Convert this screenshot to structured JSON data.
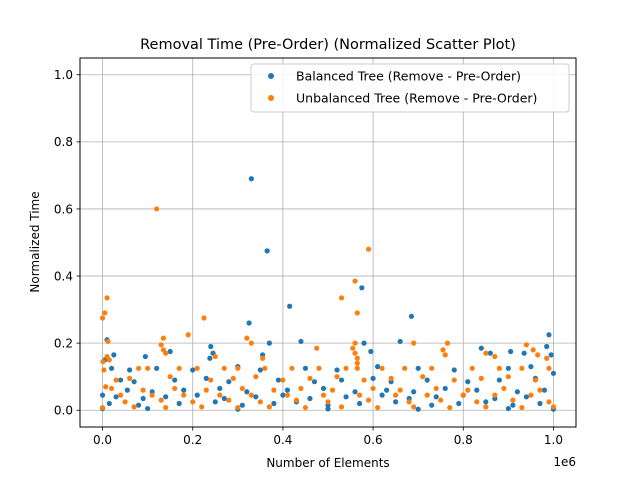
{
  "chart_data": {
    "type": "scatter",
    "title": "Removal Time (Pre-Order) (Normalized Scatter Plot)",
    "xlabel": "Number of Elements",
    "ylabel": "Normalized Time",
    "x_offset_label": "1e6",
    "xlim": [
      -50000,
      1050000
    ],
    "ylim": [
      -0.05,
      1.05
    ],
    "x_tick_values": [
      0,
      200000,
      400000,
      600000,
      800000,
      1000000
    ],
    "x_tick_labels": [
      "0.0",
      "0.2",
      "0.4",
      "0.6",
      "0.8",
      "1.0"
    ],
    "y_tick_values": [
      0,
      0.2,
      0.4,
      0.6,
      0.8,
      1.0
    ],
    "y_tick_labels": [
      "0.0",
      "0.2",
      "0.4",
      "0.6",
      "0.8",
      "1.0"
    ],
    "grid": true,
    "legend_position": "upper right",
    "series": [
      {
        "name": "Balanced Tree (Remove - Pre-Order)",
        "color": "#1f77b4",
        "points": [
          [
            330000,
            0.69
          ],
          [
            365000,
            0.475
          ],
          [
            415000,
            0.31
          ],
          [
            575000,
            0.365
          ],
          [
            685000,
            0.28
          ],
          [
            325000,
            0.26
          ],
          [
            990000,
            0.225
          ],
          [
            370000,
            0.2
          ],
          [
            440000,
            0.205
          ],
          [
            580000,
            0.2
          ],
          [
            660000,
            0.205
          ],
          [
            240000,
            0.19
          ],
          [
            150000,
            0.175
          ],
          [
            25000,
            0.165
          ],
          [
            95000,
            0.16
          ],
          [
            10000,
            0.21
          ],
          [
            5000,
            0.15
          ],
          [
            985000,
            0.19
          ],
          [
            995000,
            0.165
          ],
          [
            840000,
            0.185
          ],
          [
            860000,
            0.17
          ],
          [
            120000,
            0.125
          ],
          [
            200000,
            0.12
          ],
          [
            300000,
            0.13
          ],
          [
            350000,
            0.12
          ],
          [
            450000,
            0.125
          ],
          [
            520000,
            0.12
          ],
          [
            610000,
            0.13
          ],
          [
            700000,
            0.125
          ],
          [
            780000,
            0.12
          ],
          [
            900000,
            0.125
          ],
          [
            950000,
            0.13
          ],
          [
            40000,
            0.09
          ],
          [
            70000,
            0.085
          ],
          [
            160000,
            0.09
          ],
          [
            230000,
            0.095
          ],
          [
            280000,
            0.085
          ],
          [
            390000,
            0.09
          ],
          [
            470000,
            0.085
          ],
          [
            530000,
            0.09
          ],
          [
            600000,
            0.095
          ],
          [
            640000,
            0.085
          ],
          [
            720000,
            0.09
          ],
          [
            810000,
            0.085
          ],
          [
            880000,
            0.09
          ],
          [
            960000,
            0.095
          ],
          [
            1000000,
            0.11
          ],
          [
            55000,
            0.06
          ],
          [
            110000,
            0.055
          ],
          [
            180000,
            0.06
          ],
          [
            260000,
            0.065
          ],
          [
            320000,
            0.055
          ],
          [
            410000,
            0.06
          ],
          [
            490000,
            0.065
          ],
          [
            560000,
            0.055
          ],
          [
            630000,
            0.06
          ],
          [
            690000,
            0.055
          ],
          [
            760000,
            0.065
          ],
          [
            830000,
            0.06
          ],
          [
            920000,
            0.055
          ],
          [
            980000,
            0.06
          ],
          [
            30000,
            0.04
          ],
          [
            90000,
            0.035
          ],
          [
            140000,
            0.04
          ],
          [
            210000,
            0.045
          ],
          [
            270000,
            0.035
          ],
          [
            340000,
            0.04
          ],
          [
            400000,
            0.045
          ],
          [
            460000,
            0.035
          ],
          [
            540000,
            0.04
          ],
          [
            620000,
            0.045
          ],
          [
            680000,
            0.035
          ],
          [
            740000,
            0.04
          ],
          [
            800000,
            0.045
          ],
          [
            870000,
            0.035
          ],
          [
            940000,
            0.04
          ],
          [
            15000,
            0.02
          ],
          [
            80000,
            0.015
          ],
          [
            170000,
            0.02
          ],
          [
            250000,
            0.025
          ],
          [
            310000,
            0.015
          ],
          [
            380000,
            0.02
          ],
          [
            430000,
            0.025
          ],
          [
            500000,
            0.015
          ],
          [
            570000,
            0.02
          ],
          [
            650000,
            0.025
          ],
          [
            730000,
            0.015
          ],
          [
            790000,
            0.02
          ],
          [
            850000,
            0.025
          ],
          [
            910000,
            0.015
          ],
          [
            970000,
            0.02
          ],
          [
            0,
            0.045
          ],
          [
            0,
            0.005
          ],
          [
            100000,
            0.005
          ],
          [
            300000,
            0.003
          ],
          [
            500000,
            0.004
          ],
          [
            700000,
            0.003
          ],
          [
            900000,
            0.005
          ],
          [
            1000000,
            0.003
          ],
          [
            20000,
            0.125
          ],
          [
            60000,
            0.12
          ],
          [
            245000,
            0.17
          ],
          [
            238000,
            0.155
          ],
          [
            355000,
            0.165
          ],
          [
            595000,
            0.175
          ],
          [
            905000,
            0.175
          ],
          [
            935000,
            0.17
          ]
        ]
      },
      {
        "name": "Unbalanced Tree (Remove - Pre-Order)",
        "color": "#ff7f0e",
        "points": [
          [
            120000,
            0.6
          ],
          [
            590000,
            0.48
          ],
          [
            560000,
            0.385
          ],
          [
            530000,
            0.335
          ],
          [
            10000,
            0.335
          ],
          [
            5000,
            0.29
          ],
          [
            0,
            0.275
          ],
          [
            225000,
            0.275
          ],
          [
            565000,
            0.29
          ],
          [
            190000,
            0.225
          ],
          [
            320000,
            0.215
          ],
          [
            135000,
            0.215
          ],
          [
            330000,
            0.2
          ],
          [
            12000,
            0.205
          ],
          [
            560000,
            0.2
          ],
          [
            690000,
            0.2
          ],
          [
            765000,
            0.2
          ],
          [
            940000,
            0.195
          ],
          [
            10000,
            0.16
          ],
          [
            15000,
            0.15
          ],
          [
            130000,
            0.195
          ],
          [
            135000,
            0.18
          ],
          [
            140000,
            0.17
          ],
          [
            475000,
            0.185
          ],
          [
            555000,
            0.185
          ],
          [
            560000,
            0.17
          ],
          [
            565000,
            0.155
          ],
          [
            755000,
            0.18
          ],
          [
            760000,
            0.165
          ],
          [
            850000,
            0.17
          ],
          [
            870000,
            0.16
          ],
          [
            955000,
            0.18
          ],
          [
            965000,
            0.165
          ],
          [
            985000,
            0.155
          ],
          [
            250000,
            0.16
          ],
          [
            355000,
            0.155
          ],
          [
            80000,
            0.125
          ],
          [
            100000,
            0.125
          ],
          [
            170000,
            0.125
          ],
          [
            210000,
            0.125
          ],
          [
            270000,
            0.125
          ],
          [
            300000,
            0.125
          ],
          [
            360000,
            0.125
          ],
          [
            420000,
            0.125
          ],
          [
            480000,
            0.125
          ],
          [
            540000,
            0.125
          ],
          [
            620000,
            0.125
          ],
          [
            670000,
            0.125
          ],
          [
            730000,
            0.125
          ],
          [
            820000,
            0.125
          ],
          [
            880000,
            0.125
          ],
          [
            930000,
            0.125
          ],
          [
            990000,
            0.125
          ],
          [
            30000,
            0.09
          ],
          [
            60000,
            0.095
          ],
          [
            150000,
            0.1
          ],
          [
            240000,
            0.09
          ],
          [
            290000,
            0.095
          ],
          [
            340000,
            0.1
          ],
          [
            400000,
            0.09
          ],
          [
            460000,
            0.095
          ],
          [
            520000,
            0.1
          ],
          [
            580000,
            0.09
          ],
          [
            640000,
            0.095
          ],
          [
            710000,
            0.1
          ],
          [
            780000,
            0.09
          ],
          [
            840000,
            0.095
          ],
          [
            900000,
            0.1
          ],
          [
            960000,
            0.09
          ],
          [
            20000,
            0.065
          ],
          [
            90000,
            0.06
          ],
          [
            160000,
            0.065
          ],
          [
            230000,
            0.06
          ],
          [
            310000,
            0.065
          ],
          [
            380000,
            0.06
          ],
          [
            440000,
            0.065
          ],
          [
            510000,
            0.06
          ],
          [
            600000,
            0.065
          ],
          [
            660000,
            0.06
          ],
          [
            740000,
            0.065
          ],
          [
            810000,
            0.06
          ],
          [
            890000,
            0.065
          ],
          [
            970000,
            0.06
          ],
          [
            40000,
            0.045
          ],
          [
            110000,
            0.045
          ],
          [
            180000,
            0.045
          ],
          [
            260000,
            0.045
          ],
          [
            330000,
            0.045
          ],
          [
            410000,
            0.045
          ],
          [
            490000,
            0.045
          ],
          [
            570000,
            0.045
          ],
          [
            650000,
            0.045
          ],
          [
            720000,
            0.045
          ],
          [
            800000,
            0.045
          ],
          [
            870000,
            0.045
          ],
          [
            950000,
            0.045
          ],
          [
            50000,
            0.025
          ],
          [
            130000,
            0.03
          ],
          [
            200000,
            0.025
          ],
          [
            280000,
            0.03
          ],
          [
            350000,
            0.025
          ],
          [
            430000,
            0.03
          ],
          [
            500000,
            0.025
          ],
          [
            590000,
            0.03
          ],
          [
            680000,
            0.025
          ],
          [
            750000,
            0.03
          ],
          [
            830000,
            0.025
          ],
          [
            910000,
            0.03
          ],
          [
            990000,
            0.025
          ],
          [
            0,
            0.008
          ],
          [
            70000,
            0.01
          ],
          [
            140000,
            0.008
          ],
          [
            220000,
            0.01
          ],
          [
            300000,
            0.008
          ],
          [
            370000,
            0.01
          ],
          [
            450000,
            0.008
          ],
          [
            530000,
            0.01
          ],
          [
            610000,
            0.008
          ],
          [
            690000,
            0.01
          ],
          [
            770000,
            0.008
          ],
          [
            850000,
            0.01
          ],
          [
            930000,
            0.008
          ],
          [
            1000000,
            0.01
          ],
          [
            1000,
            0.145
          ],
          [
            3000,
            0.12
          ],
          [
            7000,
            0.07
          ],
          [
            565000,
            0.14
          ],
          [
            565000,
            0.125
          ]
        ]
      }
    ]
  }
}
